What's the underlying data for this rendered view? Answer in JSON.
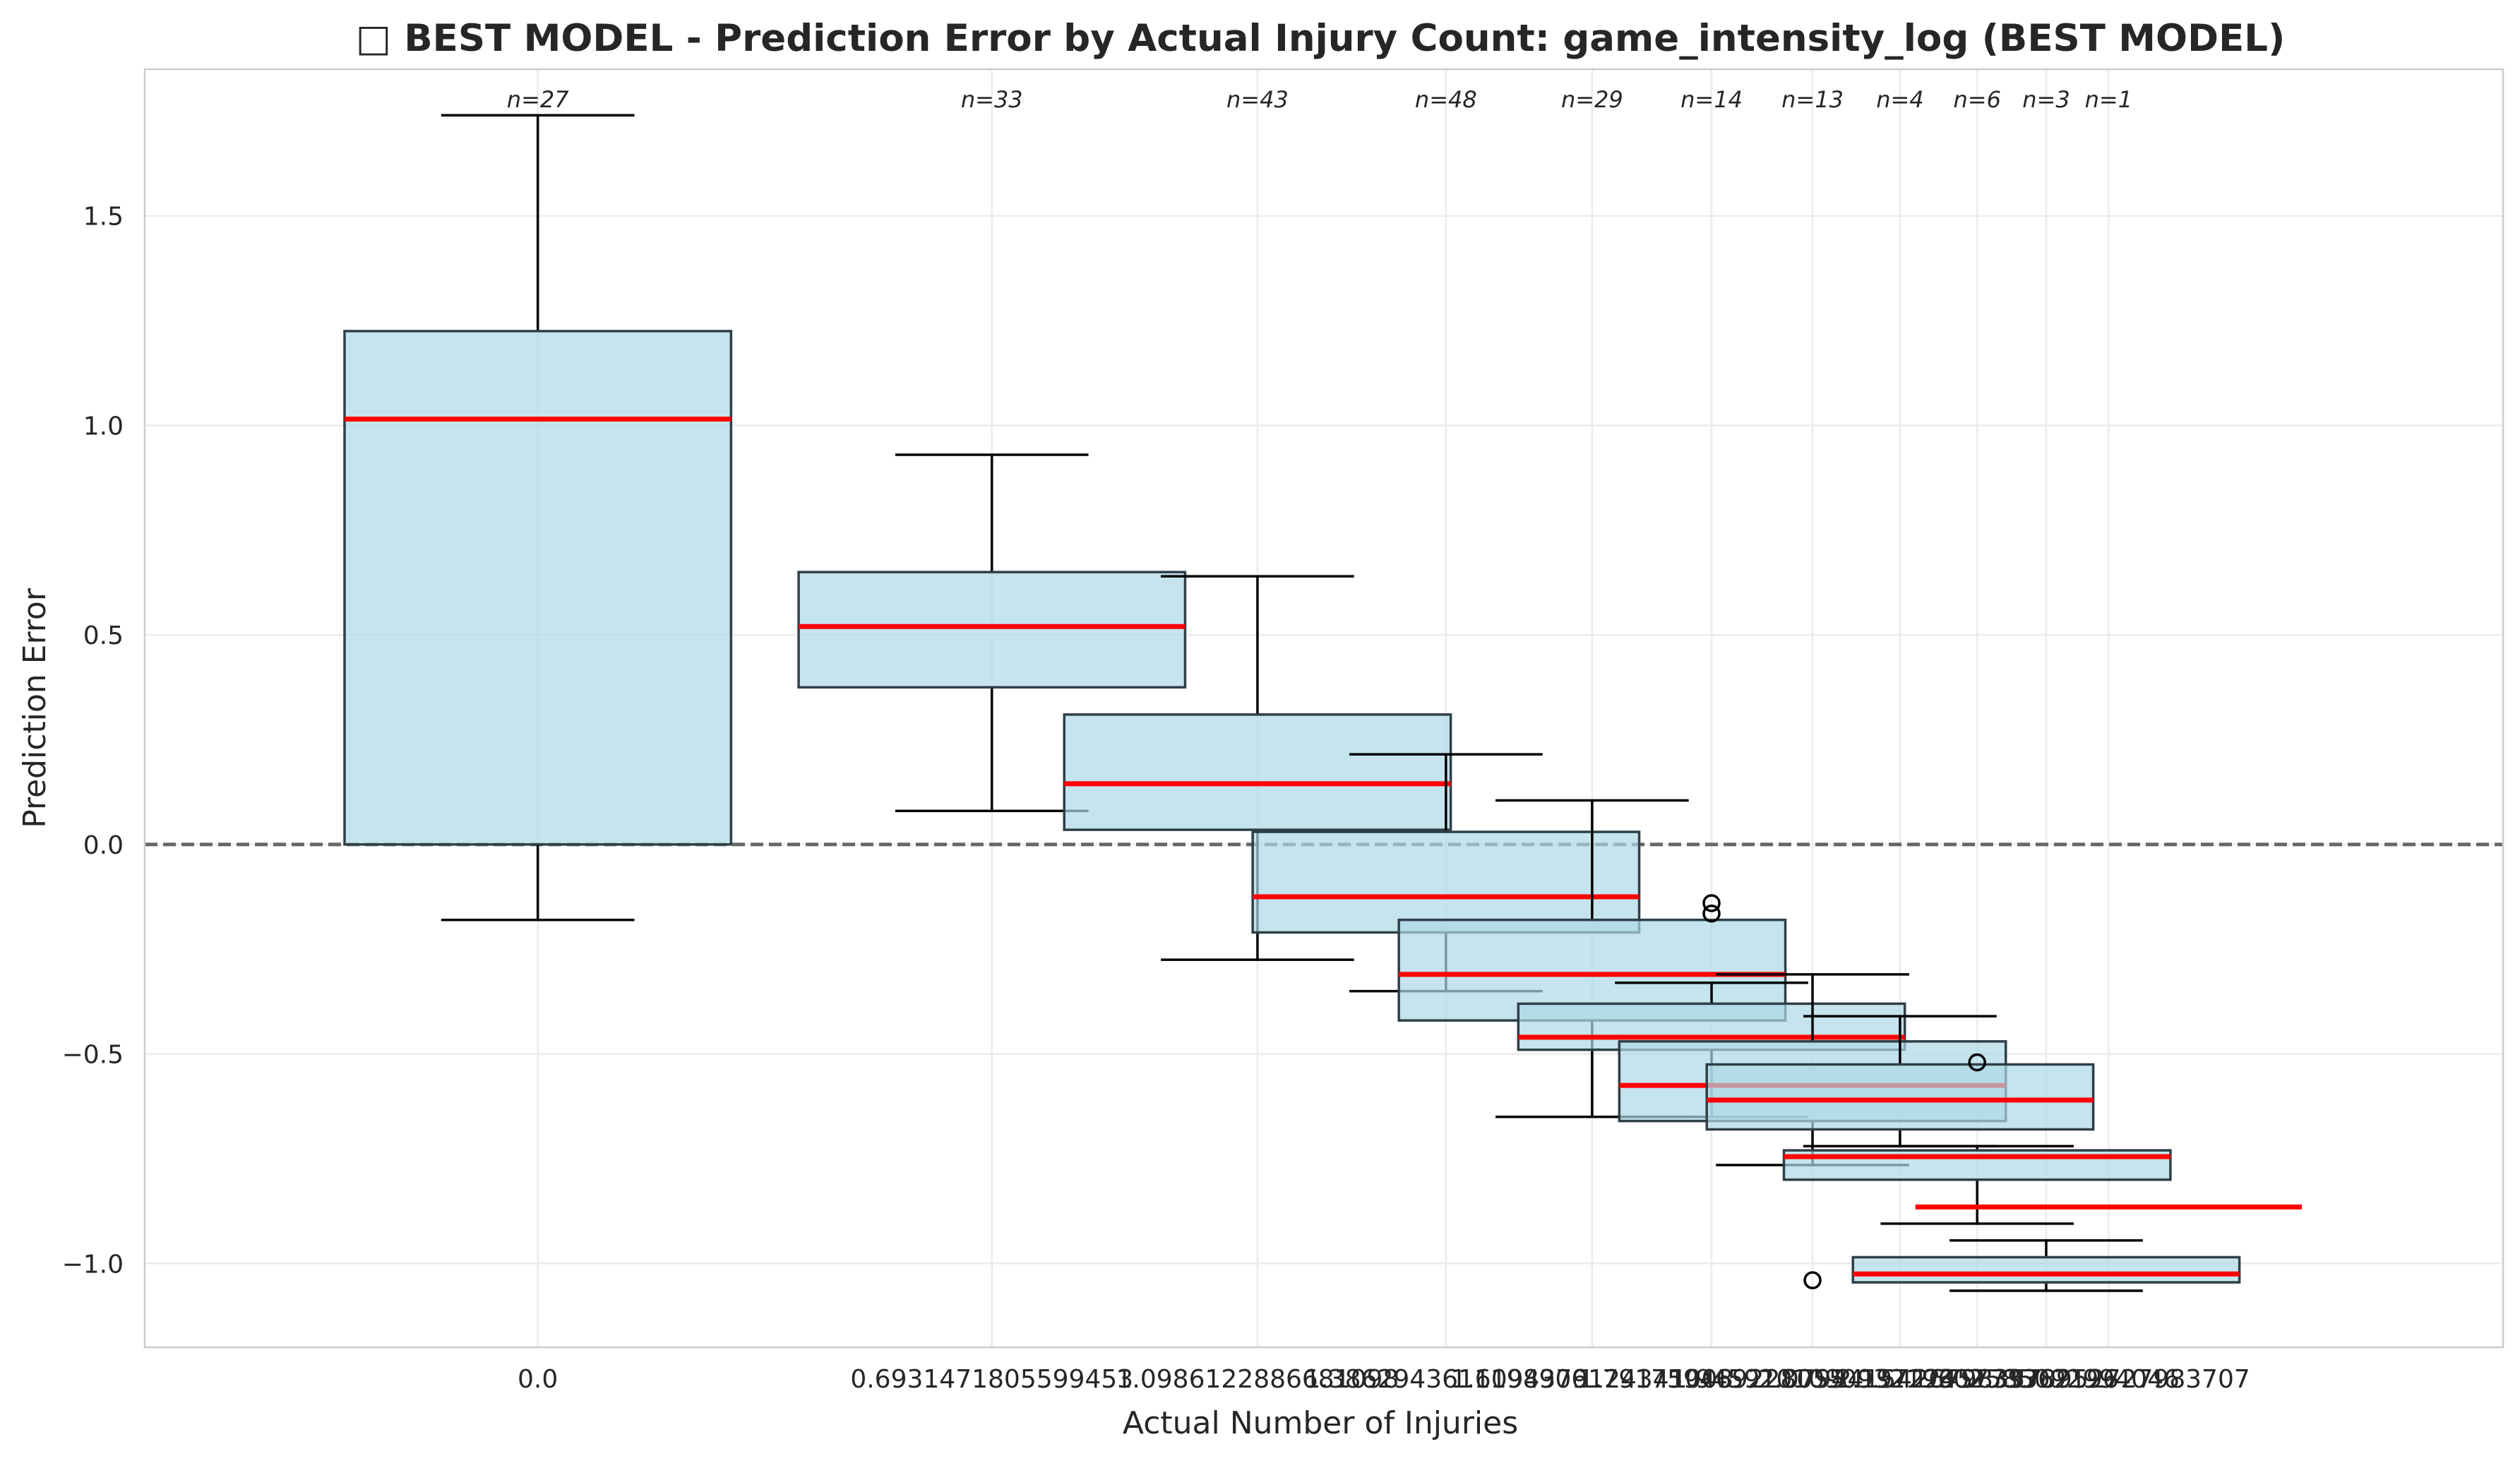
{
  "chart_data": {
    "type": "box",
    "title": "□ BEST MODEL - Prediction Error by Actual Injury Count: game_intensity_log (BEST MODEL)",
    "xlabel": "Actual Number of Injuries",
    "ylabel": "Prediction Error",
    "ylim": [
      -1.2,
      1.85
    ],
    "xlim": [
      -0.6,
      3.0
    ],
    "yticks": [
      -1.0,
      -0.5,
      0.0,
      0.5,
      1.0,
      1.5
    ],
    "ytick_labels": [
      "−1.0",
      "−0.5",
      "0.0",
      "0.5",
      "1.0",
      "1.5"
    ],
    "grid": true,
    "reference_line": {
      "y": 0.0,
      "style": "dashed",
      "color": "#666666"
    },
    "colors": {
      "box_fill": "#add8e6",
      "box_edge": "#2f3f48",
      "median": "#ff0000",
      "whisker": "#000000",
      "grid": "#ebebeb"
    },
    "boxes": [
      {
        "x": 0.0,
        "label": "0.0",
        "n_label": "n=27",
        "q1": 0.0,
        "median": 1.015,
        "q3": 1.225,
        "whisker_low": -0.18,
        "whisker_high": 1.74,
        "outliers": []
      },
      {
        "x": 0.6931471805599453,
        "label": "0.6931471805599453",
        "n_label": "n=33",
        "q1": 0.375,
        "median": 0.52,
        "q3": 0.65,
        "whisker_low": 0.08,
        "whisker_high": 0.93,
        "outliers": []
      },
      {
        "x": 1.0986122886681098,
        "label": "1.0986122886681098",
        "n_label": "n=43",
        "q1": 0.035,
        "median": 0.145,
        "q3": 0.31,
        "whisker_low": -0.275,
        "whisker_high": 0.64,
        "outliers": []
      },
      {
        "x": 1.3862943611198906,
        "label": "1.3862943611198906",
        "n_label": "n=48",
        "q1": -0.21,
        "median": -0.125,
        "q3": 0.03,
        "whisker_low": -0.35,
        "whisker_high": 0.215,
        "outliers": []
      },
      {
        "x": 1.6094379124341003,
        "label": "1.6094379124341003",
        "n_label": "n=29",
        "q1": -0.42,
        "median": -0.31,
        "q3": -0.18,
        "whisker_low": -0.65,
        "whisker_high": 0.105,
        "outliers": []
      },
      {
        "x": 1.791759469228055,
        "label": "1.791759469228055",
        "n_label": "n=14",
        "q1": -0.49,
        "median": -0.46,
        "q3": -0.38,
        "whisker_low": -0.65,
        "whisker_high": -0.33,
        "outliers": [
          -0.14,
          -0.165
        ]
      },
      {
        "x": 1.9459101090932196,
        "label": "1.9459101090932196",
        "n_label": "n=13",
        "q1": -0.66,
        "median": -0.575,
        "q3": -0.47,
        "whisker_low": -0.765,
        "whisker_high": -0.31,
        "outliers": [
          -1.04
        ]
      },
      {
        "x": 2.0794415416798357,
        "label": "2.0794415416798357",
        "n_label": "n=4",
        "q1": -0.68,
        "median": -0.61,
        "q3": -0.525,
        "whisker_low": -0.72,
        "whisker_high": -0.41,
        "outliers": []
      },
      {
        "x": 2.1972245773362196,
        "label": "2.1972245773362196",
        "n_label": "n=6",
        "q1": -0.8,
        "median": -0.745,
        "q3": -0.73,
        "whisker_low": -0.905,
        "whisker_high": -0.72,
        "outliers": [
          -0.52
        ]
      },
      {
        "x": 2.302585092994046,
        "label": "2.302585092994046",
        "n_label": "n=3",
        "q1": -1.045,
        "median": -1.025,
        "q3": -0.985,
        "whisker_low": -1.065,
        "whisker_high": -0.945,
        "outliers": []
      },
      {
        "x": 2.3978952727983707,
        "label": "2.3978952727983707",
        "n_label": "n=1",
        "q1": -0.865,
        "median": -0.865,
        "q3": -0.865,
        "whisker_low": -0.865,
        "whisker_high": -0.865,
        "outliers": []
      }
    ]
  }
}
